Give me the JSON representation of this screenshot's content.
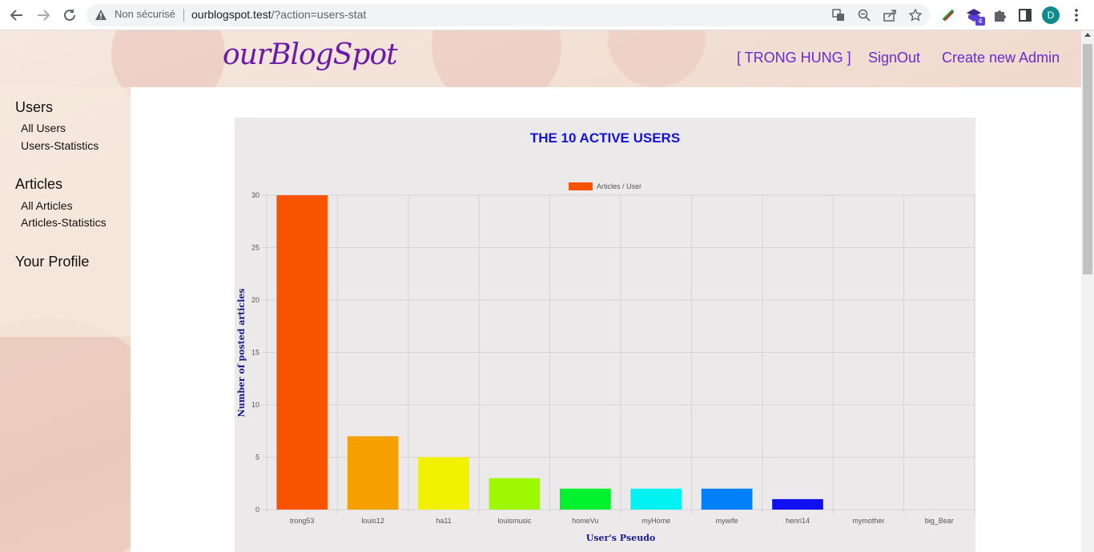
{
  "browser": {
    "security_label": "Non sécurisé",
    "url_host": "ourblogspot.test",
    "url_rest": "/?action=users-stat",
    "profile_initial": "D",
    "extension_badge": "4",
    "icons": [
      "back-icon",
      "forward-icon",
      "reload-icon",
      "warning-icon",
      "translate-icon",
      "zoom-icon",
      "share-icon",
      "star-icon",
      "extension-icon",
      "puzzle-icon",
      "sidepanel-icon",
      "menu-icon"
    ]
  },
  "header": {
    "logo": "ourBlogSpot",
    "nav": [
      "[ TRONG HUNG ]",
      "SignOut",
      "Create new Admin"
    ]
  },
  "sidebar": {
    "users_title": "Users",
    "users_links": [
      "All Users",
      "Users-Statistics"
    ],
    "articles_title": "Articles",
    "articles_links": [
      "All Articles",
      "Articles-Statistics"
    ],
    "profile_title": "Your Profile"
  },
  "chart_title": "THE 10 ACTIVE USERS",
  "chart_data": {
    "type": "bar",
    "categories": [
      "trong53",
      "louis12",
      "ha11",
      "louismusic",
      "homeVu",
      "myHome",
      "mywife",
      "henri14",
      "mymother",
      "big_Bear"
    ],
    "series": [
      {
        "name": "Articles / User",
        "values": [
          30,
          7,
          5,
          3,
          2,
          2,
          2,
          1,
          0,
          0
        ]
      }
    ],
    "colors": [
      "#f85400",
      "#f6a000",
      "#f2f200",
      "#9ef800",
      "#00f22e",
      "#00f2f2",
      "#0080f8",
      "#1010f0",
      "#9a00f0",
      "#f000c0"
    ],
    "legend_color": "#f85400",
    "xlabel": "User's Pseudo",
    "ylabel": "Number of posted articles",
    "ylim": [
      0,
      30
    ],
    "yticks": [
      0,
      5,
      10,
      15,
      20,
      25,
      30
    ],
    "grid": true,
    "legend_position": "top"
  }
}
